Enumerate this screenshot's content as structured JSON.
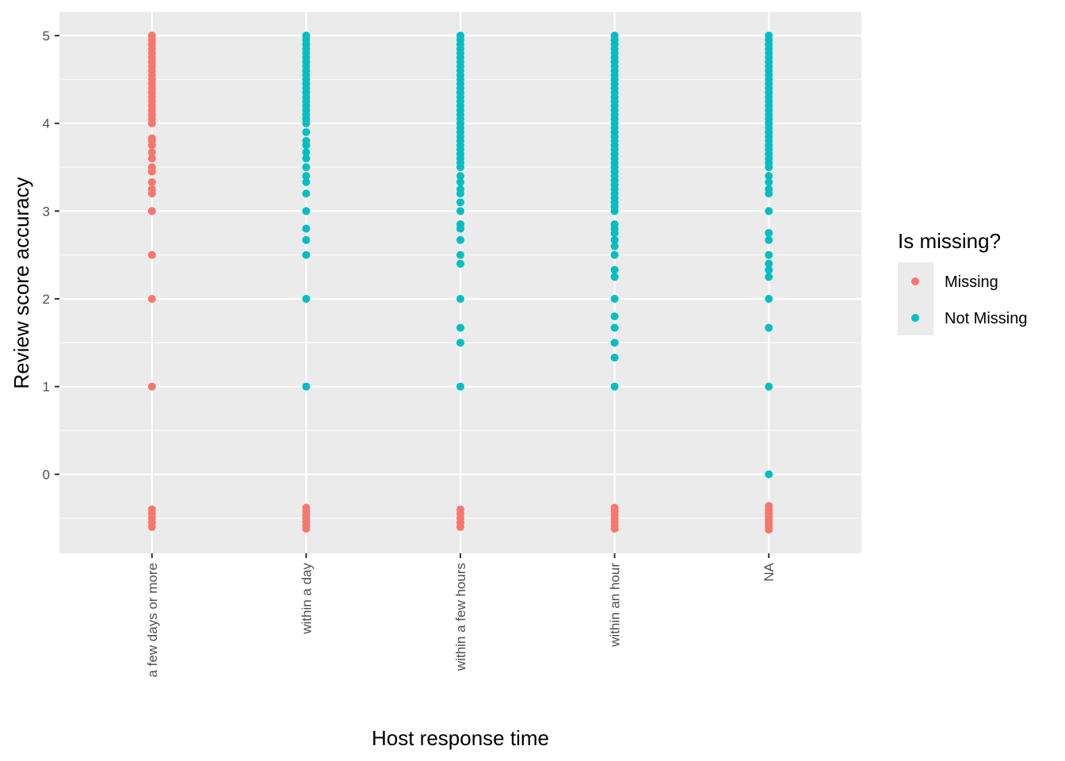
{
  "chart_data": {
    "type": "strip",
    "x_label": "Host response time",
    "y_label": "Review score accuracy",
    "categories": [
      "a few days or more",
      "within a day",
      "within a few hours",
      "within an hour",
      "NA"
    ],
    "ylim": [
      -0.9,
      5.27
    ],
    "yticks": [
      0,
      1,
      2,
      3,
      4,
      5
    ],
    "minor_yticks": [
      -0.5,
      0.5,
      1.5,
      2.5,
      3.5,
      4.5
    ],
    "grid": true,
    "background": "#ebebeb",
    "legend_title": "Is missing?",
    "legend_position": "right",
    "series": [
      {
        "name": "Missing",
        "color": "#f8766d",
        "values": [
          [
            4,
            4.05,
            4.1,
            4.15,
            4.2,
            4.25,
            4.3,
            4.35,
            4.4,
            4.45,
            4.5,
            4.55,
            4.6,
            4.65,
            4.7,
            4.75,
            4.8,
            4.85,
            4.9,
            4.95,
            5,
            3.83,
            3.8,
            3.75,
            3.67,
            3.6,
            3.5,
            3.45,
            3.33,
            3.25,
            3.2,
            3,
            2.5,
            2,
            1,
            -0.4,
            -0.45,
            -0.5,
            -0.55,
            -0.6
          ],
          [
            -0.38,
            -0.42,
            -0.46,
            -0.5,
            -0.54,
            -0.58,
            -0.62
          ],
          [
            -0.4,
            -0.45,
            -0.5,
            -0.55,
            -0.6
          ],
          [
            -0.38,
            -0.42,
            -0.46,
            -0.5,
            -0.54,
            -0.58,
            -0.62
          ],
          [
            -0.36,
            -0.4,
            -0.44,
            -0.48,
            -0.52,
            -0.56,
            -0.6,
            -0.63
          ]
        ]
      },
      {
        "name": "Not Missing",
        "color": "#00bfc4",
        "values": [
          [],
          [
            4,
            4.05,
            4.1,
            4.15,
            4.2,
            4.25,
            4.3,
            4.35,
            4.4,
            4.45,
            4.5,
            4.55,
            4.6,
            4.65,
            4.7,
            4.75,
            4.8,
            4.85,
            4.9,
            4.95,
            5,
            3.9,
            3.8,
            3.75,
            3.67,
            3.6,
            3.5,
            3.4,
            3.33,
            3.2,
            3,
            2.8,
            2.67,
            2.5,
            2,
            1
          ],
          [
            3.5,
            3.55,
            3.6,
            3.65,
            3.7,
            3.75,
            3.8,
            3.85,
            3.9,
            3.95,
            4,
            4.05,
            4.1,
            4.15,
            4.2,
            4.25,
            4.3,
            4.35,
            4.4,
            4.45,
            4.5,
            4.55,
            4.6,
            4.65,
            4.7,
            4.75,
            4.8,
            4.85,
            4.9,
            4.95,
            5,
            3.4,
            3.33,
            3.25,
            3.2,
            3.1,
            3,
            2.85,
            2.8,
            2.67,
            2.5,
            2.4,
            2,
            1.67,
            1.5,
            1
          ],
          [
            3,
            3.05,
            3.1,
            3.15,
            3.2,
            3.25,
            3.3,
            3.35,
            3.4,
            3.45,
            3.5,
            3.55,
            3.6,
            3.65,
            3.7,
            3.75,
            3.8,
            3.85,
            3.9,
            3.95,
            4,
            4.05,
            4.1,
            4.15,
            4.2,
            4.25,
            4.3,
            4.35,
            4.4,
            4.45,
            4.5,
            4.55,
            4.6,
            4.65,
            4.7,
            4.75,
            4.8,
            4.85,
            4.9,
            4.95,
            5,
            2.85,
            2.8,
            2.75,
            2.67,
            2.6,
            2.5,
            2.33,
            2.25,
            2,
            1.8,
            1.67,
            1.5,
            1.33,
            1
          ],
          [
            3.5,
            3.55,
            3.6,
            3.65,
            3.7,
            3.75,
            3.8,
            3.85,
            3.9,
            3.95,
            4,
            4.05,
            4.1,
            4.15,
            4.2,
            4.25,
            4.3,
            4.35,
            4.4,
            4.45,
            4.5,
            4.55,
            4.6,
            4.65,
            4.7,
            4.75,
            4.8,
            4.85,
            4.9,
            4.95,
            5,
            3.4,
            3.33,
            3.25,
            3.2,
            3,
            2.75,
            2.67,
            2.5,
            2.4,
            2.33,
            2.25,
            2,
            1.67,
            1,
            0
          ]
        ]
      }
    ]
  }
}
